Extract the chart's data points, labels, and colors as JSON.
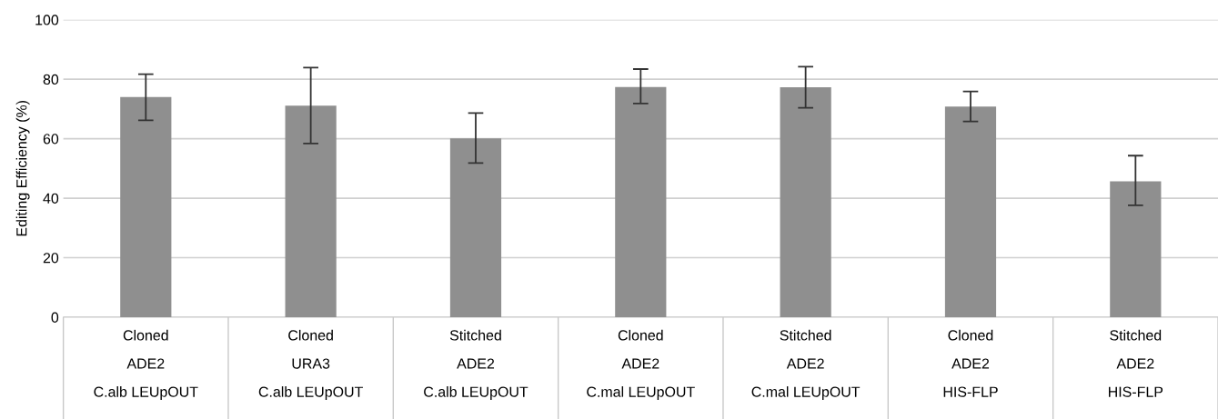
{
  "chart_data": {
    "type": "bar",
    "ylabel": "Editing Efficiency (%)",
    "categories": [
      "Cloned\nADE2\nC.alb LEUpOUT",
      "Cloned\nURA3\nC.alb LEUpOUT",
      "Stitched\nADE2\nC.alb LEUpOUT",
      "Cloned\nADE2\nC.mal LEUpOUT",
      "Stitched\nADE2\nC.mal LEUpOUT",
      "Cloned\nADE2\nHIS-FLP",
      "Stitched\nADE2\nHIS-FLP"
    ],
    "values": [
      74.0,
      71.1,
      60.1,
      77.4,
      77.3,
      70.8,
      45.7
    ],
    "errors": [
      [
        66.2,
        81.7
      ],
      [
        58.4,
        83.9
      ],
      [
        51.8,
        68.6
      ],
      [
        71.8,
        83.4
      ],
      [
        70.4,
        84.2
      ],
      [
        65.8,
        75.9
      ],
      [
        37.6,
        54.3
      ]
    ],
    "color": "#8f8f8f",
    "ylim": [
      0,
      100
    ],
    "yticks": [
      0,
      20,
      40,
      60,
      80,
      100
    ],
    "grid": "y"
  }
}
